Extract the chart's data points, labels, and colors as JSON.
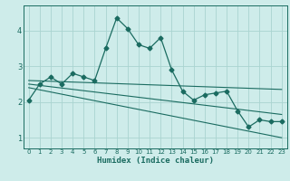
{
  "xlabel": "Humidex (Indice chaleur)",
  "bg_color": "#ceecea",
  "grid_color": "#aad4d0",
  "line_color": "#1a6b60",
  "xlim": [
    -0.5,
    23.5
  ],
  "ylim": [
    0.7,
    4.7
  ],
  "yticks": [
    1,
    2,
    3,
    4
  ],
  "xticks": [
    0,
    1,
    2,
    3,
    4,
    5,
    6,
    7,
    8,
    9,
    10,
    11,
    12,
    13,
    14,
    15,
    16,
    17,
    18,
    19,
    20,
    21,
    22,
    23
  ],
  "series1_x": [
    0,
    1,
    2,
    3,
    4,
    5,
    6,
    7,
    8,
    9,
    10,
    11,
    12,
    13,
    14,
    15,
    16,
    17,
    18,
    19,
    20,
    21,
    22,
    23
  ],
  "series1_y": [
    2.05,
    2.5,
    2.7,
    2.5,
    2.8,
    2.7,
    2.6,
    3.5,
    4.35,
    4.05,
    3.6,
    3.5,
    3.8,
    2.9,
    2.3,
    2.05,
    2.2,
    2.25,
    2.3,
    1.75,
    1.3,
    1.5,
    1.45,
    1.45
  ],
  "trend1_x": [
    0,
    23
  ],
  "trend1_y": [
    2.6,
    2.35
  ],
  "trend2_x": [
    0,
    23
  ],
  "trend2_y": [
    2.5,
    1.65
  ],
  "trend3_x": [
    0,
    23
  ],
  "trend3_y": [
    2.4,
    1.0
  ]
}
